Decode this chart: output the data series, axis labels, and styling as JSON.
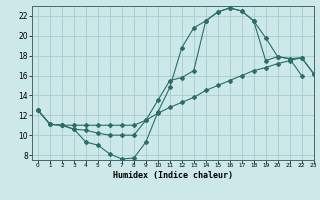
{
  "title": "",
  "xlabel": "Humidex (Indice chaleur)",
  "bg_color": "#cce8e8",
  "line_color": "#2a6e65",
  "grid_color": "#aacccc",
  "xlim": [
    -0.5,
    23
  ],
  "ylim": [
    7.5,
    23
  ],
  "xticks": [
    0,
    1,
    2,
    3,
    4,
    5,
    6,
    7,
    8,
    9,
    10,
    11,
    12,
    13,
    14,
    15,
    16,
    17,
    18,
    19,
    20,
    21,
    22,
    23
  ],
  "yticks": [
    8,
    10,
    12,
    14,
    16,
    18,
    20,
    22
  ],
  "curve1_x": [
    0,
    1,
    2,
    3,
    4,
    5,
    6,
    7,
    8,
    9,
    10,
    11,
    12,
    13,
    14,
    15,
    16,
    17,
    18,
    19,
    20,
    21,
    22,
    23
  ],
  "curve1_y": [
    12.5,
    11.1,
    11.0,
    10.6,
    9.3,
    9.0,
    8.1,
    7.6,
    7.7,
    9.3,
    12.3,
    14.8,
    18.8,
    20.8,
    21.5,
    22.4,
    22.8,
    22.5,
    21.5,
    19.8,
    17.9,
    17.7,
    16.0,
    null
  ],
  "curve2_x": [
    0,
    1,
    2,
    3,
    4,
    5,
    6,
    7,
    8,
    9,
    10,
    11,
    12,
    13,
    14,
    15,
    16,
    17,
    18,
    19,
    20,
    21,
    22,
    23
  ],
  "curve2_y": [
    12.5,
    11.1,
    11.0,
    10.6,
    10.5,
    10.2,
    10.0,
    10.0,
    10.0,
    11.5,
    13.5,
    15.5,
    15.8,
    16.5,
    21.5,
    22.4,
    22.8,
    22.5,
    21.5,
    17.5,
    17.9,
    17.7,
    17.8,
    16.2
  ],
  "curve3_x": [
    0,
    1,
    2,
    3,
    4,
    5,
    6,
    7,
    8,
    9,
    10,
    11,
    12,
    13,
    14,
    15,
    16,
    17,
    18,
    19,
    20,
    21,
    22,
    23
  ],
  "curve3_y": [
    12.5,
    11.1,
    11.0,
    11.0,
    11.0,
    11.0,
    11.0,
    11.0,
    11.0,
    11.5,
    12.2,
    12.8,
    13.3,
    13.8,
    14.5,
    15.0,
    15.5,
    16.0,
    16.5,
    16.8,
    17.2,
    17.5,
    17.8,
    16.2
  ]
}
